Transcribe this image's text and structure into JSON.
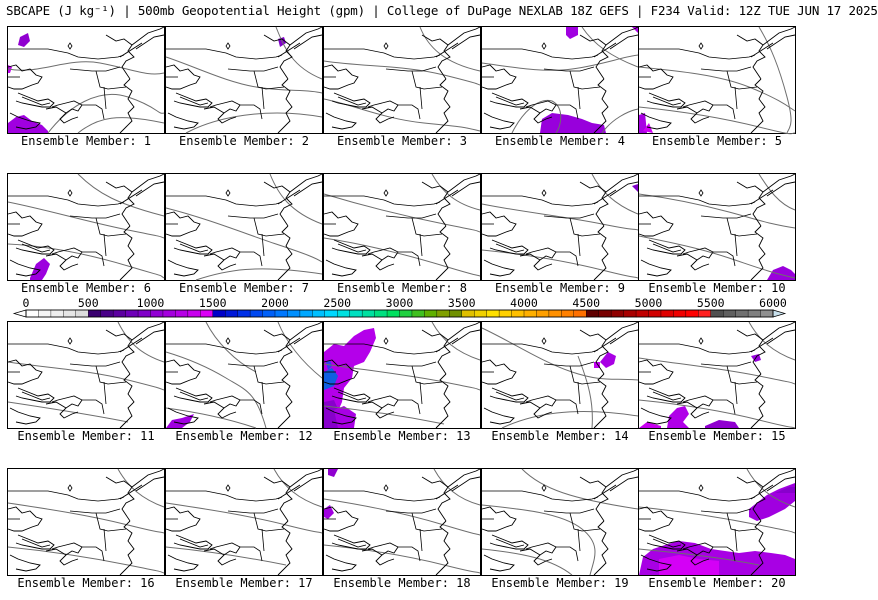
{
  "title": "SBCAPE (J kg⁻¹) | 500mb Geopotential Height (gpm) | College of DuPage NEXLAB 18Z GEFS | F234 Valid: 12Z TUE JUN 17 2025",
  "panels": [
    {
      "member": 1,
      "label": "Ensemble Member: 1"
    },
    {
      "member": 2,
      "label": "Ensemble Member: 2"
    },
    {
      "member": 3,
      "label": "Ensemble Member: 3"
    },
    {
      "member": 4,
      "label": "Ensemble Member: 4"
    },
    {
      "member": 5,
      "label": "Ensemble Member: 5"
    },
    {
      "member": 6,
      "label": "Ensemble Member: 6"
    },
    {
      "member": 7,
      "label": "Ensemble Member: 7"
    },
    {
      "member": 8,
      "label": "Ensemble Member: 8"
    },
    {
      "member": 9,
      "label": "Ensemble Member: 9"
    },
    {
      "member": 10,
      "label": "Ensemble Member: 10"
    },
    {
      "member": 11,
      "label": "Ensemble Member: 11"
    },
    {
      "member": 12,
      "label": "Ensemble Member: 12"
    },
    {
      "member": 13,
      "label": "Ensemble Member: 13"
    },
    {
      "member": 14,
      "label": "Ensemble Member: 14"
    },
    {
      "member": 15,
      "label": "Ensemble Member: 15"
    },
    {
      "member": 16,
      "label": "Ensemble Member: 16"
    },
    {
      "member": 17,
      "label": "Ensemble Member: 17"
    },
    {
      "member": 18,
      "label": "Ensemble Member: 18"
    },
    {
      "member": 19,
      "label": "Ensemble Member: 19"
    },
    {
      "member": 20,
      "label": "Ensemble Member: 20"
    }
  ],
  "colorbar": {
    "tick_labels": [
      "0",
      "500",
      "1000",
      "1500",
      "2000",
      "2500",
      "3000",
      "3500",
      "4000",
      "4500",
      "5000",
      "5500",
      "6000"
    ],
    "min": 0,
    "max": 6000,
    "step": 100,
    "color_groups": [
      [
        "#ffffff",
        "#f6f6f6",
        "#eeeeee",
        "#e6e6e6",
        "#dddddd"
      ],
      [
        "#3a0070",
        "#4a0088",
        "#5c00a0",
        "#6e00b8",
        "#8000c8",
        "#9200d4",
        "#a400de",
        "#b600e6",
        "#c800ee",
        "#dc00f6"
      ],
      [
        "#0000c8",
        "#0018d8",
        "#0030e8",
        "#0048f0",
        "#0060f8",
        "#0078ff",
        "#0090ff",
        "#00a8ff",
        "#00c0ff",
        "#00d8ff"
      ],
      [
        "#00e0e0",
        "#00e0c0",
        "#00e0a0",
        "#00e080",
        "#00e060",
        "#20d040",
        "#40c020",
        "#60b000",
        "#80a000",
        "#709000"
      ],
      [
        "#e0c000",
        "#f0d000",
        "#ffe000",
        "#ffd000",
        "#ffc000",
        "#ffb000",
        "#ffa000",
        "#ff9000",
        "#ff8000",
        "#ff7000"
      ],
      [
        "#600000",
        "#780000",
        "#900000",
        "#a80000",
        "#c00000",
        "#d00000",
        "#e00000",
        "#f00000",
        "#ff0000",
        "#ff2020"
      ],
      [
        "#505050",
        "#606060",
        "#707070",
        "#808080",
        "#909090",
        "#a0a0a0",
        "#b0b8c0",
        "#b8c8d0",
        "#c0d4e0",
        "#c8e0ec"
      ]
    ]
  }
}
